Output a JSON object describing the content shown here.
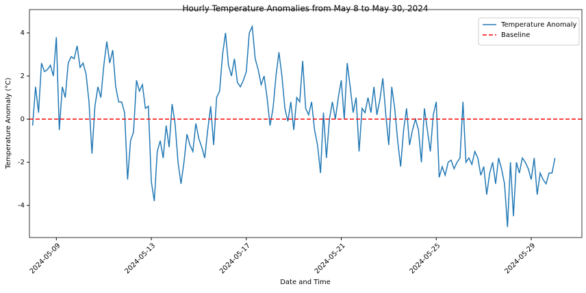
{
  "chart_data": {
    "type": "line",
    "title": "Hourly Temperature Anomalies from May 8 to May 30, 2024",
    "x_label": "Date and Time",
    "y_label": "Temperature Anomaly (°C)",
    "x": [
      "2024-05-08T00:00",
      "2024-05-08T03:00",
      "2024-05-08T06:00",
      "2024-05-08T09:00",
      "2024-05-08T12:00",
      "2024-05-08T15:00",
      "2024-05-08T18:00",
      "2024-05-08T21:00",
      "2024-05-09T00:00",
      "2024-05-09T03:00",
      "2024-05-09T06:00",
      "2024-05-09T09:00",
      "2024-05-09T12:00",
      "2024-05-09T15:00",
      "2024-05-09T18:00",
      "2024-05-09T21:00",
      "2024-05-10T00:00",
      "2024-05-10T03:00",
      "2024-05-10T06:00",
      "2024-05-10T09:00",
      "2024-05-10T12:00",
      "2024-05-10T15:00",
      "2024-05-10T18:00",
      "2024-05-10T21:00",
      "2024-05-11T00:00",
      "2024-05-11T03:00",
      "2024-05-11T06:00",
      "2024-05-11T09:00",
      "2024-05-11T12:00",
      "2024-05-11T15:00",
      "2024-05-11T18:00",
      "2024-05-11T21:00",
      "2024-05-12T00:00",
      "2024-05-12T03:00",
      "2024-05-12T06:00",
      "2024-05-12T09:00",
      "2024-05-12T12:00",
      "2024-05-12T15:00",
      "2024-05-12T18:00",
      "2024-05-12T21:00",
      "2024-05-13T00:00",
      "2024-05-13T03:00",
      "2024-05-13T06:00",
      "2024-05-13T09:00",
      "2024-05-13T12:00",
      "2024-05-13T15:00",
      "2024-05-13T18:00",
      "2024-05-13T21:00",
      "2024-05-14T00:00",
      "2024-05-14T03:00",
      "2024-05-14T06:00",
      "2024-05-14T09:00",
      "2024-05-14T12:00",
      "2024-05-14T15:00",
      "2024-05-14T18:00",
      "2024-05-14T21:00",
      "2024-05-15T00:00",
      "2024-05-15T03:00",
      "2024-05-15T06:00",
      "2024-05-15T09:00",
      "2024-05-15T12:00",
      "2024-05-15T15:00",
      "2024-05-15T18:00",
      "2024-05-15T21:00",
      "2024-05-16T00:00",
      "2024-05-16T03:00",
      "2024-05-16T06:00",
      "2024-05-16T09:00",
      "2024-05-16T12:00",
      "2024-05-16T15:00",
      "2024-05-16T18:00",
      "2024-05-16T21:00",
      "2024-05-17T00:00",
      "2024-05-17T03:00",
      "2024-05-17T06:00",
      "2024-05-17T09:00",
      "2024-05-17T12:00",
      "2024-05-17T15:00",
      "2024-05-17T18:00",
      "2024-05-17T21:00",
      "2024-05-18T00:00",
      "2024-05-18T03:00",
      "2024-05-18T06:00",
      "2024-05-18T09:00",
      "2024-05-18T12:00",
      "2024-05-18T15:00",
      "2024-05-18T18:00",
      "2024-05-18T21:00",
      "2024-05-19T00:00",
      "2024-05-19T03:00",
      "2024-05-19T06:00",
      "2024-05-19T09:00",
      "2024-05-19T12:00",
      "2024-05-19T15:00",
      "2024-05-19T18:00",
      "2024-05-19T21:00",
      "2024-05-20T00:00",
      "2024-05-20T03:00",
      "2024-05-20T06:00",
      "2024-05-20T09:00",
      "2024-05-20T12:00",
      "2024-05-20T15:00",
      "2024-05-20T18:00",
      "2024-05-20T21:00",
      "2024-05-21T00:00",
      "2024-05-21T03:00",
      "2024-05-21T06:00",
      "2024-05-21T09:00",
      "2024-05-21T12:00",
      "2024-05-21T15:00",
      "2024-05-21T18:00",
      "2024-05-21T21:00",
      "2024-05-22T00:00",
      "2024-05-22T03:00",
      "2024-05-22T06:00",
      "2024-05-22T09:00",
      "2024-05-22T12:00",
      "2024-05-22T15:00",
      "2024-05-22T18:00",
      "2024-05-22T21:00",
      "2024-05-23T00:00",
      "2024-05-23T03:00",
      "2024-05-23T06:00",
      "2024-05-23T09:00",
      "2024-05-23T12:00",
      "2024-05-23T15:00",
      "2024-05-23T18:00",
      "2024-05-23T21:00",
      "2024-05-24T00:00",
      "2024-05-24T03:00",
      "2024-05-24T06:00",
      "2024-05-24T09:00",
      "2024-05-24T12:00",
      "2024-05-24T15:00",
      "2024-05-24T18:00",
      "2024-05-24T21:00",
      "2024-05-25T00:00",
      "2024-05-25T03:00",
      "2024-05-25T06:00",
      "2024-05-25T09:00",
      "2024-05-25T12:00",
      "2024-05-25T15:00",
      "2024-05-25T18:00",
      "2024-05-25T21:00",
      "2024-05-26T00:00",
      "2024-05-26T03:00",
      "2024-05-26T06:00",
      "2024-05-26T09:00",
      "2024-05-26T12:00",
      "2024-05-26T15:00",
      "2024-05-26T18:00",
      "2024-05-26T21:00",
      "2024-05-27T00:00",
      "2024-05-27T03:00",
      "2024-05-27T06:00",
      "2024-05-27T09:00",
      "2024-05-27T12:00",
      "2024-05-27T15:00",
      "2024-05-27T18:00",
      "2024-05-27T21:00",
      "2024-05-28T00:00",
      "2024-05-28T03:00",
      "2024-05-28T06:00",
      "2024-05-28T09:00",
      "2024-05-28T12:00",
      "2024-05-28T15:00",
      "2024-05-28T18:00",
      "2024-05-28T21:00",
      "2024-05-29T00:00",
      "2024-05-29T03:00",
      "2024-05-29T06:00",
      "2024-05-29T09:00",
      "2024-05-29T12:00",
      "2024-05-29T15:00",
      "2024-05-29T18:00",
      "2024-05-29T21:00",
      "2024-05-30T00:00"
    ],
    "series": [
      {
        "name": "Temperature Anomaly",
        "color": "#1f77b4",
        "values": [
          -0.3,
          1.5,
          0.3,
          2.6,
          2.2,
          2.3,
          2.5,
          2.0,
          3.8,
          -0.5,
          1.5,
          1.0,
          2.6,
          2.9,
          2.8,
          3.4,
          2.4,
          2.6,
          2.1,
          0.8,
          -1.6,
          0.6,
          1.5,
          1.0,
          2.5,
          3.6,
          2.6,
          3.2,
          1.5,
          0.8,
          0.8,
          0.3,
          -2.8,
          -1.0,
          -0.6,
          1.8,
          1.3,
          1.6,
          0.5,
          0.6,
          -2.9,
          -3.8,
          -1.5,
          -1.0,
          -1.8,
          -0.3,
          -1.3,
          0.7,
          -0.2,
          -2.0,
          -3.0,
          -2.0,
          -0.7,
          -1.2,
          -1.5,
          -0.2,
          -0.9,
          -1.3,
          -1.8,
          -0.5,
          0.6,
          -1.2,
          1.0,
          1.3,
          3.0,
          4.0,
          2.5,
          2.0,
          2.8,
          1.7,
          1.5,
          1.8,
          2.2,
          4.0,
          4.3,
          2.8,
          2.3,
          1.6,
          2.0,
          1.0,
          -0.3,
          0.5,
          2.0,
          3.1,
          2.0,
          0.5,
          -0.1,
          0.8,
          -0.5,
          1.0,
          0.8,
          2.7,
          0.5,
          0.2,
          0.8,
          -0.5,
          -1.2,
          -2.5,
          0.3,
          -1.8,
          0.0,
          0.8,
          0.0,
          1.0,
          1.8,
          0.0,
          2.6,
          1.5,
          0.3,
          1.0,
          -1.5,
          0.5,
          0.3,
          1.0,
          0.3,
          1.5,
          0.2,
          0.9,
          1.9,
          0.2,
          -1.2,
          1.5,
          0.5,
          -1.0,
          -2.2,
          -0.5,
          0.5,
          -1.2,
          -0.5,
          0.0,
          -0.5,
          -2.0,
          0.5,
          -0.5,
          -1.5,
          0.2,
          0.8,
          -2.7,
          -2.2,
          -2.6,
          -2.0,
          -1.9,
          -2.3,
          -2.0,
          -1.8,
          0.8,
          -2.0,
          -1.8,
          -2.1,
          -1.5,
          -1.8,
          -2.6,
          -2.2,
          -3.5,
          -2.5,
          -2.0,
          -3.0,
          -1.8,
          -2.3,
          -3.0,
          -5.0,
          -2.0,
          -4.5,
          -2.0,
          -2.5,
          -1.8,
          -2.0,
          -2.3,
          -2.8,
          -1.8,
          -3.5,
          -2.5,
          -2.8,
          -3.0,
          -2.5,
          -2.5,
          -1.8
        ]
      }
    ],
    "baseline": {
      "name": "Baseline",
      "value": 0,
      "color": "#ff0000"
    },
    "xlim": [
      "2024-05-07T20:48",
      "2024-05-31T03:12"
    ],
    "xticks": [
      "2024-05-09",
      "2024-05-13",
      "2024-05-17",
      "2024-05-21",
      "2024-05-25",
      "2024-05-29"
    ],
    "ylim": [
      -5.49,
      5.08
    ],
    "yticks": [
      -4,
      -2,
      0,
      2,
      4
    ],
    "legend": "upper right"
  }
}
